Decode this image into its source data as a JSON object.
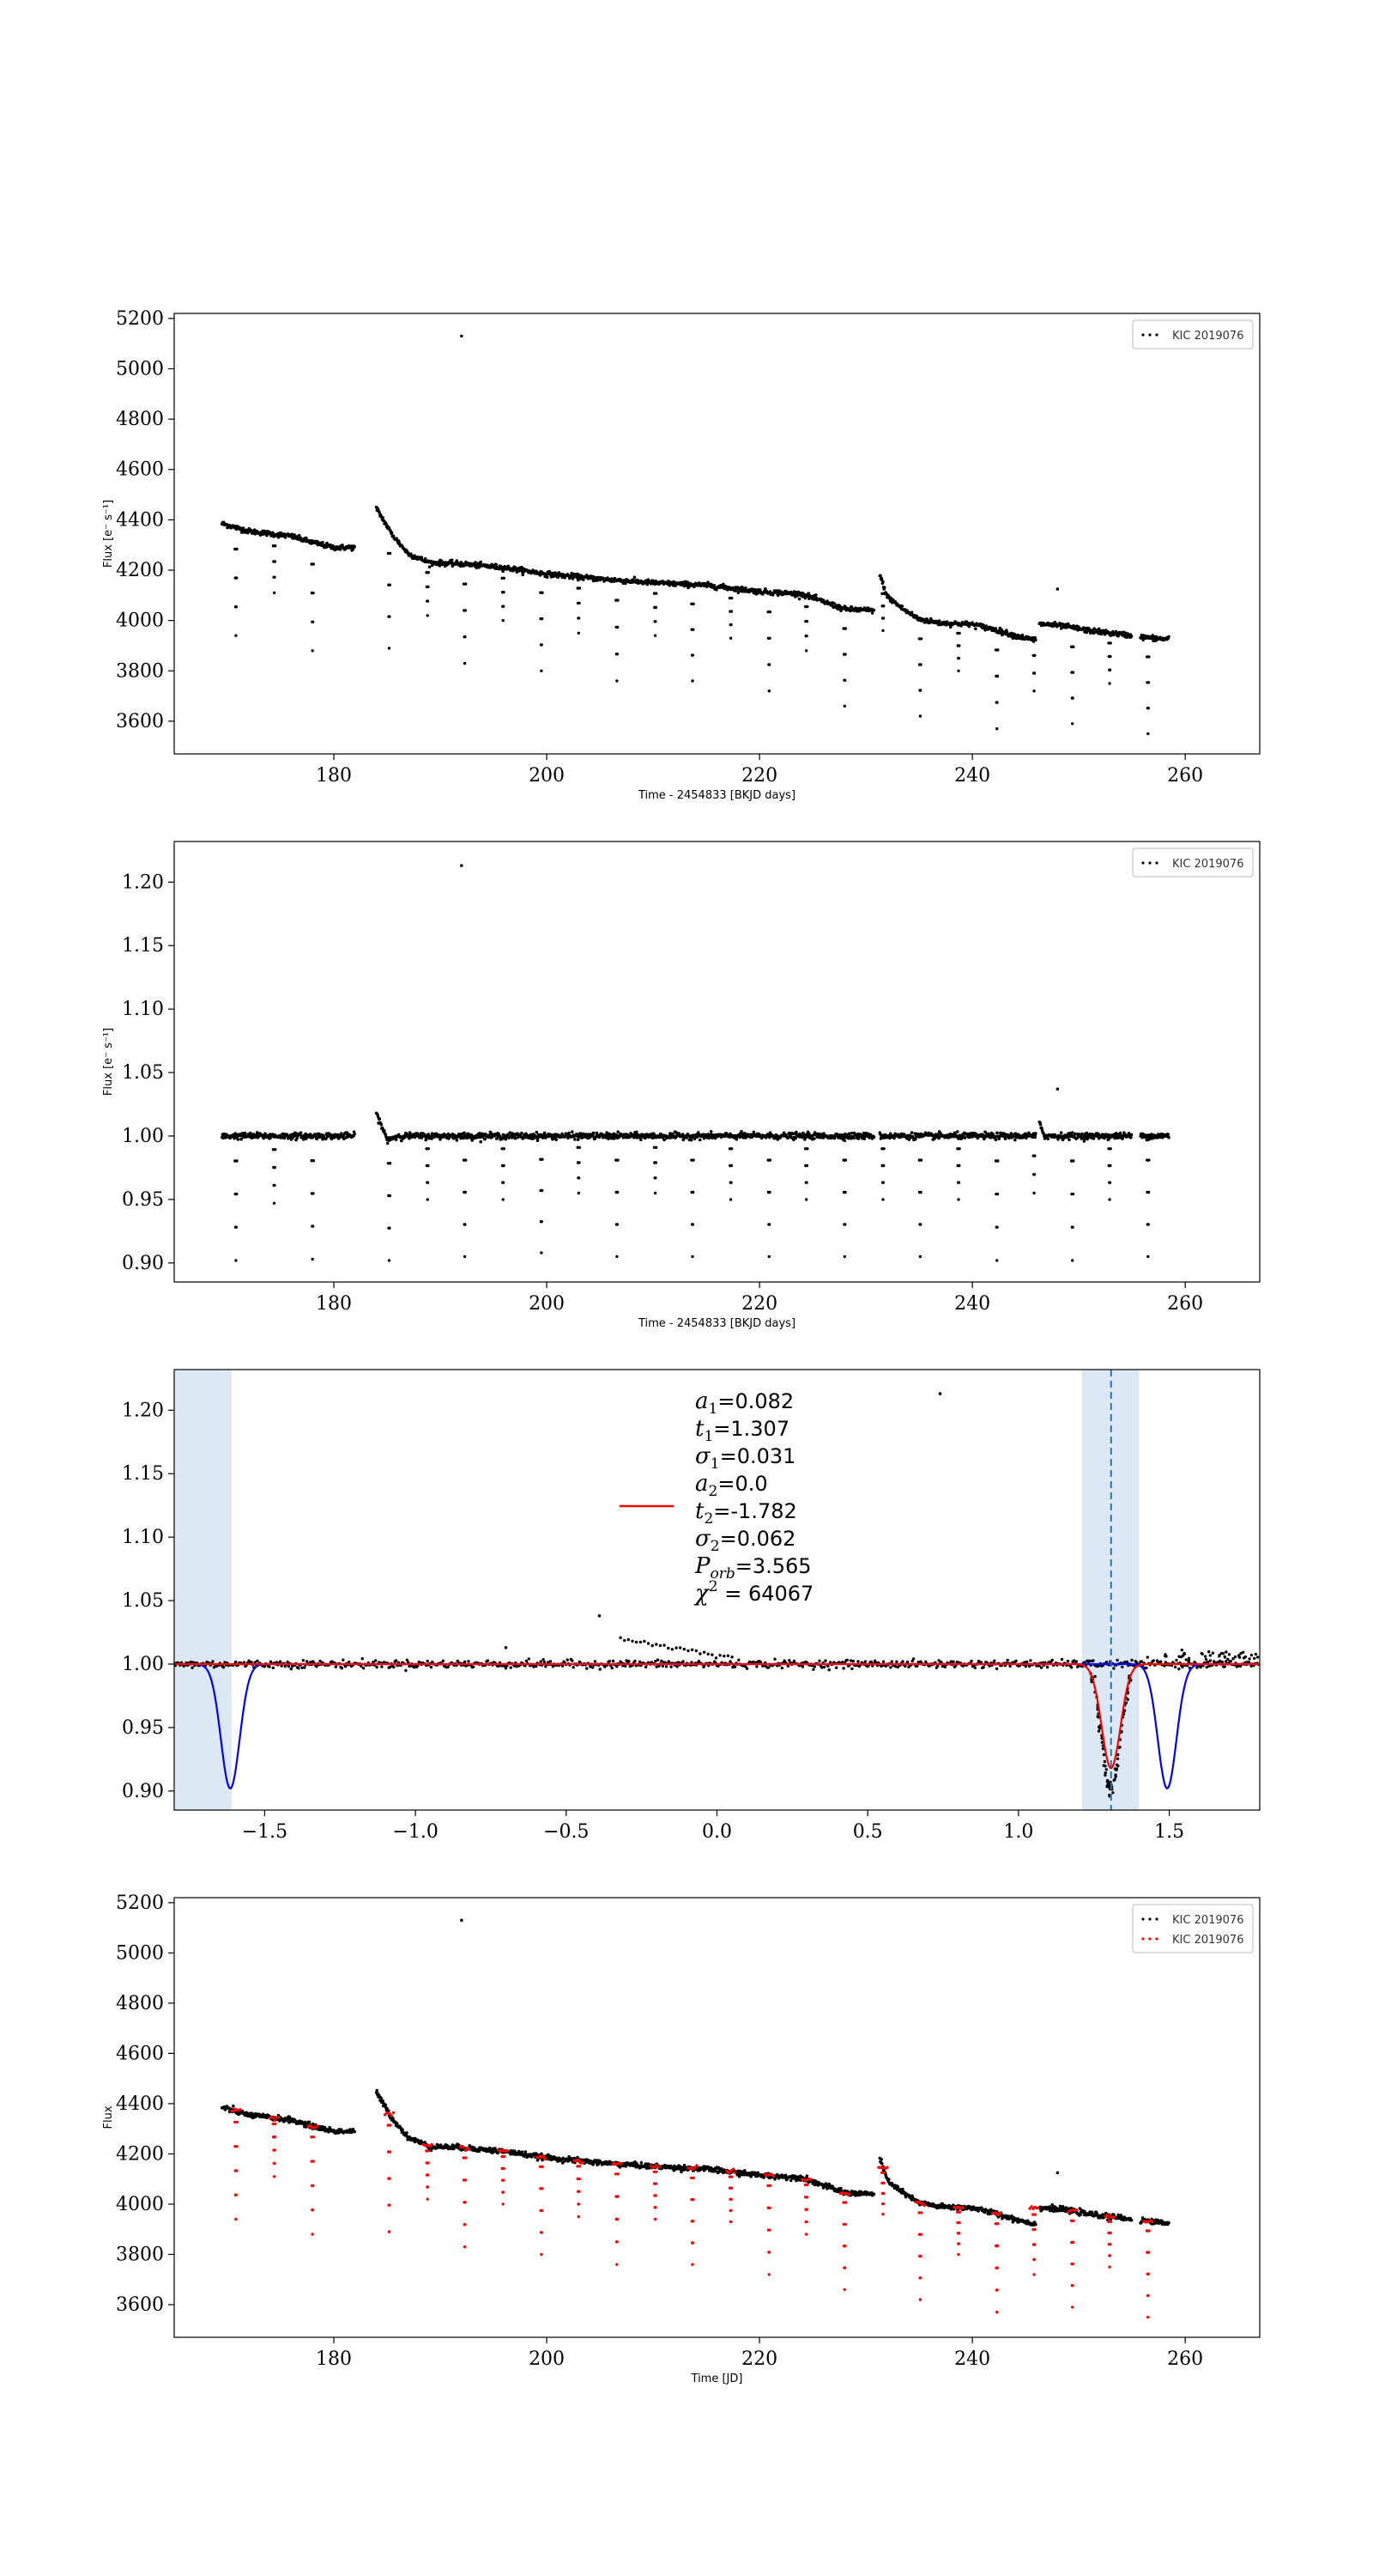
{
  "chart_data": [
    {
      "type": "scatter",
      "xlabel": "Time - 2454833 [BKJD days]",
      "ylabel": "Flux [e⁻ s⁻¹]",
      "xlim": [
        165,
        267
      ],
      "ylim": [
        3470,
        5220
      ],
      "xticks": [
        180,
        200,
        220,
        240,
        260
      ],
      "yticks": [
        3600,
        3800,
        4000,
        4200,
        4400,
        4600,
        4800,
        5000,
        5200
      ],
      "xtick_labels": [
        "180",
        "200",
        "220",
        "240",
        "260"
      ],
      "ytick_labels": [
        "3600",
        "3800",
        "4000",
        "4200",
        "4400",
        "4600",
        "4800",
        "5000",
        "5200"
      ],
      "legend": {
        "position": "top-right",
        "entries": [
          {
            "label": "KIC 2019076",
            "color": "#000000",
            "marker": "dots"
          }
        ]
      },
      "series": [
        {
          "name": "KIC 2019076",
          "color": "#000000",
          "segments": [
            {
              "x": [
                169.5,
                172,
                176,
                178,
                180,
                182
              ],
              "y": [
                4385,
                4355,
                4335,
                4310,
                4290,
                4290
              ]
            },
            {
              "x": [
                184,
                185.5,
                187,
                189,
                192,
                196,
                200,
                205,
                210,
                215,
                220,
                224,
                226,
                228,
                230.8
              ],
              "y": [
                4445,
                4340,
                4265,
                4230,
                4225,
                4210,
                4185,
                4165,
                4150,
                4140,
                4115,
                4105,
                4075,
                4045,
                4040
              ]
            },
            {
              "x": [
                231.3,
                232,
                233.5,
                235,
                237,
                240,
                242,
                244,
                246
              ],
              "y": [
                4180,
                4095,
                4045,
                4005,
                3990,
                3985,
                3965,
                3940,
                3920
              ]
            },
            {
              "x": [
                246.3,
                247,
                249,
                251,
                253,
                255
              ],
              "y": [
                3985,
                3985,
                3975,
                3960,
                3950,
                3940
              ]
            },
            {
              "x": [
                255.8,
                257,
                258.5
              ],
              "y": [
                3935,
                3930,
                3925
              ]
            }
          ],
          "dips": [
            {
              "t": 170.8,
              "min": 3940
            },
            {
              "t": 174.4,
              "min": 4110
            },
            {
              "t": 178.0,
              "min": 3880
            },
            {
              "t": 185.2,
              "min": 3890
            },
            {
              "t": 188.8,
              "min": 4020
            },
            {
              "t": 192.3,
              "min": 3830
            },
            {
              "t": 195.9,
              "min": 4000
            },
            {
              "t": 199.5,
              "min": 3800
            },
            {
              "t": 203.0,
              "min": 3950
            },
            {
              "t": 206.6,
              "min": 3760
            },
            {
              "t": 210.2,
              "min": 3940
            },
            {
              "t": 213.7,
              "min": 3760
            },
            {
              "t": 217.3,
              "min": 3930
            },
            {
              "t": 220.9,
              "min": 3720
            },
            {
              "t": 224.4,
              "min": 3880
            },
            {
              "t": 228.0,
              "min": 3660
            },
            {
              "t": 231.6,
              "min": 3960
            },
            {
              "t": 235.1,
              "min": 3620
            },
            {
              "t": 238.7,
              "min": 3800
            },
            {
              "t": 242.3,
              "min": 3570
            },
            {
              "t": 245.8,
              "min": 3720
            },
            {
              "t": 249.4,
              "min": 3590
            },
            {
              "t": 252.9,
              "min": 3750
            },
            {
              "t": 256.5,
              "min": 3550
            }
          ],
          "outliers": [
            {
              "x": 192.0,
              "y": 5130
            },
            {
              "x": 248.0,
              "y": 4125
            }
          ]
        }
      ]
    },
    {
      "type": "scatter",
      "xlabel": "Time - 2454833 [BKJD days]",
      "ylabel": "Flux [e⁻ s⁻¹]",
      "xlim": [
        165,
        267
      ],
      "ylim": [
        0.885,
        1.232
      ],
      "xticks": [
        180,
        200,
        220,
        240,
        260
      ],
      "yticks": [
        0.9,
        0.95,
        1.0,
        1.05,
        1.1,
        1.15,
        1.2
      ],
      "xtick_labels": [
        "180",
        "200",
        "220",
        "240",
        "260"
      ],
      "ytick_labels": [
        "0.90",
        "0.95",
        "1.00",
        "1.05",
        "1.10",
        "1.15",
        "1.20"
      ],
      "legend": {
        "position": "top-right",
        "entries": [
          {
            "label": "KIC 2019076",
            "color": "#000000",
            "marker": "dots"
          }
        ]
      },
      "series": [
        {
          "name": "KIC 2019076",
          "color": "#000000",
          "segments": [
            {
              "x": [
                169.5,
                182
              ],
              "y": [
                1.0,
                1.0
              ]
            },
            {
              "x": [
                184,
                185,
                186,
                230.8
              ],
              "y": [
                1.018,
                0.997,
                1.0,
                1.0
              ]
            },
            {
              "x": [
                231.3,
                246
              ],
              "y": [
                1.0,
                1.0
              ]
            },
            {
              "x": [
                246.3,
                246.8,
                247.6,
                255
              ],
              "y": [
                1.01,
                1.0,
                1.0,
                1.0
              ]
            },
            {
              "x": [
                255.8,
                258.5
              ],
              "y": [
                1.0,
                1.0
              ]
            }
          ],
          "dips": [
            {
              "t": 170.8,
              "min": 0.902
            },
            {
              "t": 174.4,
              "min": 0.947
            },
            {
              "t": 178.0,
              "min": 0.903
            },
            {
              "t": 185.2,
              "min": 0.902
            },
            {
              "t": 188.8,
              "min": 0.95
            },
            {
              "t": 192.3,
              "min": 0.905
            },
            {
              "t": 195.9,
              "min": 0.95
            },
            {
              "t": 199.5,
              "min": 0.908
            },
            {
              "t": 203.0,
              "min": 0.955
            },
            {
              "t": 206.6,
              "min": 0.905
            },
            {
              "t": 210.2,
              "min": 0.955
            },
            {
              "t": 213.7,
              "min": 0.905
            },
            {
              "t": 217.3,
              "min": 0.95
            },
            {
              "t": 220.9,
              "min": 0.905
            },
            {
              "t": 224.4,
              "min": 0.95
            },
            {
              "t": 228.0,
              "min": 0.905
            },
            {
              "t": 231.6,
              "min": 0.95
            },
            {
              "t": 235.1,
              "min": 0.905
            },
            {
              "t": 238.7,
              "min": 0.95
            },
            {
              "t": 242.3,
              "min": 0.902
            },
            {
              "t": 245.8,
              "min": 0.955
            },
            {
              "t": 249.4,
              "min": 0.902
            },
            {
              "t": 252.9,
              "min": 0.95
            },
            {
              "t": 256.5,
              "min": 0.905
            }
          ],
          "outliers": [
            {
              "x": 192.0,
              "y": 1.213
            },
            {
              "x": 248.0,
              "y": 1.037
            }
          ]
        }
      ]
    },
    {
      "type": "line",
      "xlim": [
        -1.8,
        1.8
      ],
      "ylim": [
        0.885,
        1.232
      ],
      "xticks": [
        -1.5,
        -1.0,
        -0.5,
        0.0,
        0.5,
        1.0,
        1.5
      ],
      "yticks": [
        0.9,
        0.95,
        1.0,
        1.05,
        1.1,
        1.15,
        1.2
      ],
      "xtick_labels": [
        "−1.5",
        "−1.0",
        "−0.5",
        "0.0",
        "0.5",
        "1.0",
        "1.5"
      ],
      "ytick_labels": [
        "0.90",
        "0.95",
        "1.00",
        "1.05",
        "1.10",
        "1.15",
        "1.20"
      ],
      "shaded_regions": [
        {
          "x0": -1.8,
          "x1": -1.61,
          "color": "#dce9f5"
        },
        {
          "x0": 1.21,
          "x1": 1.4,
          "color": "#dce9f5"
        }
      ],
      "vline": {
        "x": 1.307,
        "color": "#1f77b4",
        "style": "dashed"
      },
      "data_points": {
        "color": "#000000",
        "baseline": 1.0,
        "eclipse_t": 1.307,
        "eclipse_depth": 0.098,
        "eclipse_width": 0.031,
        "outliers": [
          {
            "x": 0.74,
            "y": 1.213
          },
          {
            "x": -0.39,
            "y": 1.038
          },
          {
            "x": -0.7,
            "y": 1.013
          }
        ],
        "drift": {
          "x0": -0.32,
          "y0": 1.02,
          "x1": 0.05,
          "y1": 1.005
        }
      },
      "series": [
        {
          "name": "model",
          "color": "#ff0000",
          "t": 1.307,
          "depth": 0.082,
          "sigma": 0.031,
          "baseline": 1.0
        },
        {
          "name": "",
          "color": "#0000ff",
          "t1": -1.614,
          "t2": 1.493,
          "depth": 0.098,
          "sigma": 0.031,
          "baseline": 1.0
        }
      ],
      "legend_handle_color": "#ff0000",
      "annotation_lines": [
        {
          "sym": "a",
          "sub": "1",
          "val": "=0.082"
        },
        {
          "sym": "t",
          "sub": "1",
          "val": "=1.307"
        },
        {
          "sym": "σ",
          "sub": "1",
          "val": "=0.031"
        },
        {
          "sym": "a",
          "sub": "2",
          "val": "=0.0"
        },
        {
          "sym": "t",
          "sub": "2",
          "val": "=-1.782"
        },
        {
          "sym": "σ",
          "sub": "2",
          "val": "=0.062"
        },
        {
          "sym": "P",
          "sub": "orb",
          "val": "=3.565"
        },
        {
          "sym": "χ",
          "sup": "2",
          "val": " = 64067"
        }
      ]
    },
    {
      "type": "scatter",
      "xlabel": "Time [JD]",
      "ylabel": "Flux",
      "xlim": [
        165,
        267
      ],
      "ylim": [
        3470,
        5220
      ],
      "xticks": [
        180,
        200,
        220,
        240,
        260
      ],
      "yticks": [
        3600,
        3800,
        4000,
        4200,
        4400,
        4600,
        4800,
        5000,
        5200
      ],
      "xtick_labels": [
        "180",
        "200",
        "220",
        "240",
        "260"
      ],
      "ytick_labels": [
        "3600",
        "3800",
        "4000",
        "4200",
        "4400",
        "4600",
        "4800",
        "5000",
        "5200"
      ],
      "legend": {
        "position": "top-right",
        "entries": [
          {
            "label": "KIC 2019076",
            "color": "#000000",
            "marker": "dots"
          },
          {
            "label": "KIC 2019076",
            "color": "#ff0000",
            "marker": "dots"
          }
        ]
      },
      "series": [
        {
          "name": "KIC 2019076",
          "color": "#000000",
          "same_as_panel": 0
        },
        {
          "name": "KIC 2019076",
          "color": "#ff0000",
          "marks_eclipses_of_panel": 0
        }
      ]
    }
  ]
}
